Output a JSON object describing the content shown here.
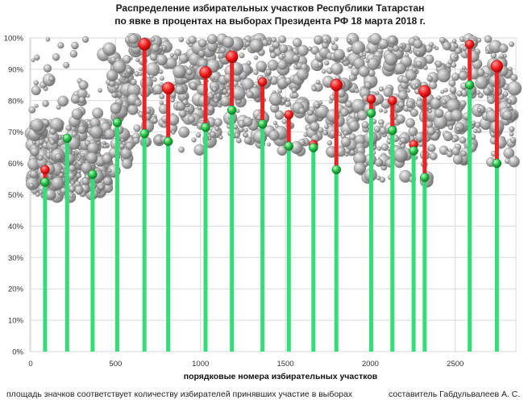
{
  "chart_data": {
    "type": "scatter",
    "title": "Распределение избирательных участков Республики Татарстан",
    "subtitle": "по явке в процентах на выборах Президента РФ 18 марта 2018 г.",
    "xlabel": "порядковые номера избирательных участков",
    "ylabel": "",
    "xlim": [
      0,
      2850
    ],
    "ylim": [
      0,
      100
    ],
    "x_ticks": [
      0,
      500,
      1000,
      1500,
      2000,
      2500
    ],
    "y_ticks": [
      "0%",
      "10%",
      "20%",
      "30%",
      "40%",
      "50%",
      "60%",
      "70%",
      "80%",
      "90%",
      "100%"
    ],
    "grid": true,
    "colors": {
      "points": "#8c8c8c",
      "drop_line": "#33dd77",
      "range_line": "#ee2222",
      "high_marker": "#ee2222",
      "low_marker": "#22bb44"
    },
    "clusters": [
      {
        "x": 85,
        "low": 54,
        "high": 58
      },
      {
        "x": 215,
        "low": 68,
        "high": 68
      },
      {
        "x": 365,
        "low": 56.5,
        "high": 56.5
      },
      {
        "x": 510,
        "low": 73,
        "high": 73
      },
      {
        "x": 670,
        "low": 69.5,
        "high": 98
      },
      {
        "x": 810,
        "low": 67,
        "high": 84
      },
      {
        "x": 1030,
        "low": 71.5,
        "high": 89
      },
      {
        "x": 1185,
        "low": 77,
        "high": 94
      },
      {
        "x": 1365,
        "low": 72.5,
        "high": 86
      },
      {
        "x": 1520,
        "low": 65.5,
        "high": 75.5
      },
      {
        "x": 1665,
        "low": 65,
        "high": 66
      },
      {
        "x": 1800,
        "low": 58,
        "high": 85
      },
      {
        "x": 2005,
        "low": 76,
        "high": 80.5
      },
      {
        "x": 2130,
        "low": 70.5,
        "high": 80
      },
      {
        "x": 2255,
        "low": 64,
        "high": 66
      },
      {
        "x": 2320,
        "low": 55.5,
        "high": 83
      },
      {
        "x": 2585,
        "low": 85,
        "high": 98
      },
      {
        "x": 2745,
        "low": 60,
        "high": 91
      }
    ],
    "point_regions": [
      {
        "x_range": [
          0,
          460
        ],
        "y_range": [
          49,
          73
        ],
        "count": 420
      },
      {
        "x_range": [
          0,
          520
        ],
        "y_range": [
          73,
          100
        ],
        "count": 40
      },
      {
        "x_range": [
          460,
          600
        ],
        "y_range": [
          55,
          100
        ],
        "count": 90
      },
      {
        "x_range": [
          600,
          1000
        ],
        "y_range": [
          64,
          100
        ],
        "count": 160
      },
      {
        "x_range": [
          1000,
          1480
        ],
        "y_range": [
          66,
          100
        ],
        "count": 200
      },
      {
        "x_range": [
          1480,
          1920
        ],
        "y_range": [
          62,
          100
        ],
        "count": 180
      },
      {
        "x_range": [
          1920,
          2350
        ],
        "y_range": [
          54,
          100
        ],
        "count": 220
      },
      {
        "x_range": [
          2350,
          2850
        ],
        "y_range": [
          60,
          100
        ],
        "count": 230
      }
    ]
  },
  "footer": {
    "left": "площадь значков соответствует количеству избирателей принявших участие в выборах",
    "right": "составитель Габдульвалеев А. С."
  }
}
